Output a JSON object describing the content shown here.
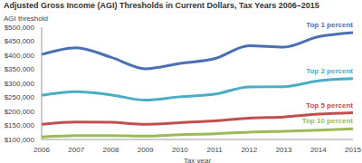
{
  "chart_data": {
    "type": "line",
    "title": "Adjusted Gross Income (AGI) Thresholds in Current Dollars, Tax Years 2006–2015",
    "y_label": "AGI threshold",
    "x_label": "Tax year",
    "categories": [
      "2006",
      "2007",
      "2008",
      "2009",
      "2010",
      "2011",
      "2012",
      "2013",
      "2014",
      "2015"
    ],
    "series": [
      {
        "name": "Top 1 percent",
        "color": "#4a6fb5",
        "values": [
          403000,
          427000,
          393000,
          352000,
          371000,
          388000,
          434000,
          429000,
          466000,
          481000
        ]
      },
      {
        "name": "Top 2 percent",
        "color": "#4bacc6",
        "values": [
          257000,
          270000,
          259000,
          240000,
          252000,
          261000,
          287000,
          288000,
          309000,
          317000
        ]
      },
      {
        "name": "Top 5 percent",
        "color": "#c0504d",
        "values": [
          154000,
          162000,
          161000,
          154000,
          160000,
          166000,
          176000,
          180000,
          190000,
          195000
        ]
      },
      {
        "name": "Top 10 percent",
        "color": "#9bbb59",
        "values": [
          109000,
          114000,
          114000,
          112000,
          117000,
          120000,
          126000,
          129000,
          133000,
          138000
        ]
      }
    ],
    "ylim": [
      100000,
      500000
    ],
    "yticks": [
      {
        "value": 100000,
        "label": "$100,000"
      },
      {
        "value": 150000,
        "label": "$150,000"
      },
      {
        "value": 200000,
        "label": "$200,000"
      },
      {
        "value": 250000,
        "label": "$250,000"
      },
      {
        "value": 300000,
        "label": "$300,000"
      },
      {
        "value": 350000,
        "label": "$350,000"
      },
      {
        "value": 400000,
        "label": "$400,000"
      },
      {
        "value": 450000,
        "label": "$450,000"
      },
      {
        "value": 500000,
        "label": "$500,000"
      }
    ],
    "grid": false
  }
}
